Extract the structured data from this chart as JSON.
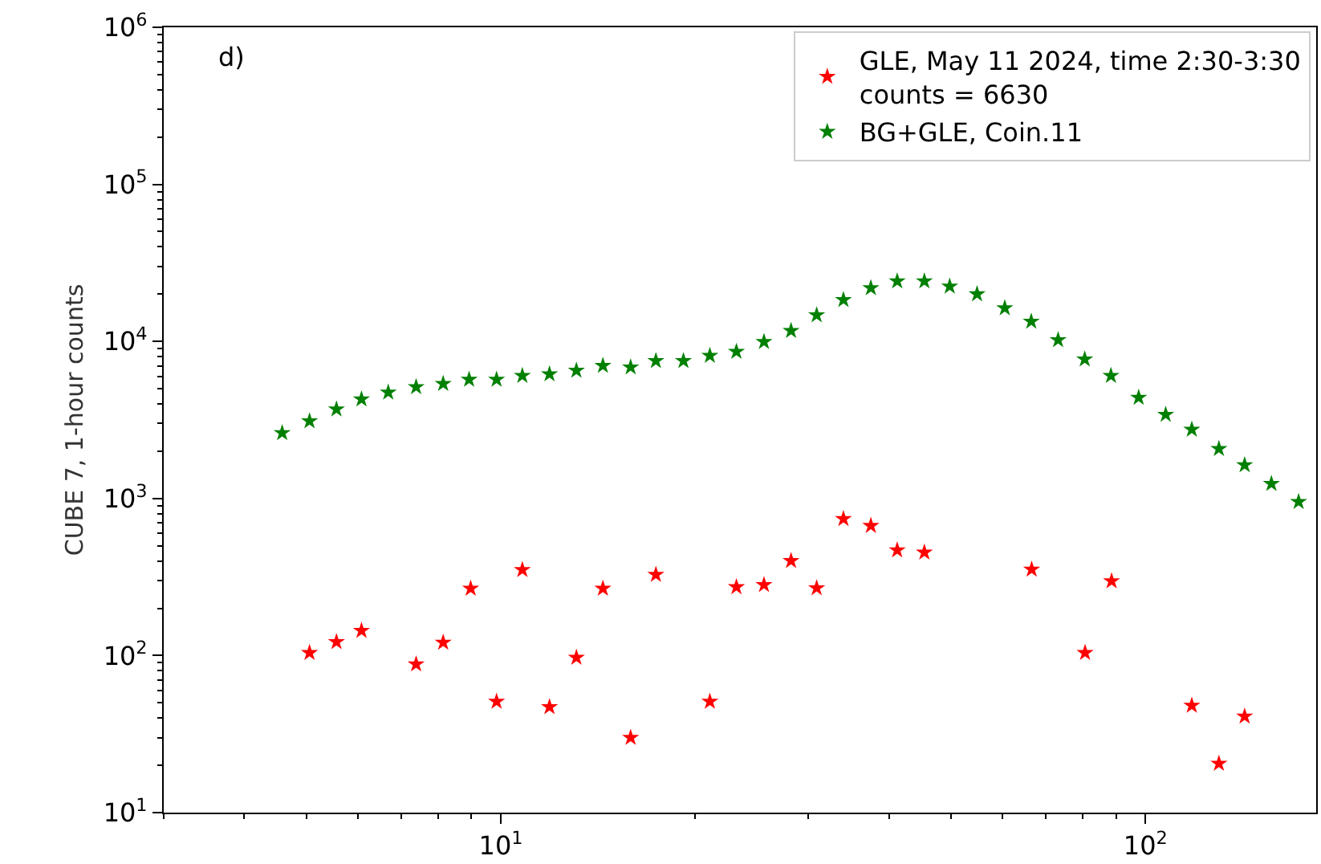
{
  "chart_data": {
    "type": "scatter",
    "ylabel": "CUBE 7, 1-hour counts",
    "annotations": [
      "d)"
    ],
    "log": "xy",
    "legend": "top right",
    "marker": "star",
    "xlim": [
      3,
      184
    ],
    "ylim": [
      10,
      1000000
    ],
    "xticks": [
      {
        "value": 10,
        "label": "10$^{1}$"
      },
      {
        "value": 100,
        "label": "10$^{2}$"
      }
    ],
    "yticks": [
      {
        "value": 10,
        "label": "10$^{1}$"
      },
      {
        "value": 100,
        "label": "10$^{2}$"
      },
      {
        "value": 1000,
        "label": "10$^{3}$"
      },
      {
        "value": 10000,
        "label": "10$^{4}$"
      },
      {
        "value": 100000,
        "label": "10$^{5}$"
      },
      {
        "value": 1000000,
        "label": "10$^{6}$"
      }
    ],
    "series": [
      {
        "name": "GLE, May 11 2024, time 2:30-3:30\ncounts = 6630",
        "color": "#ff0000",
        "x": [
          5.05,
          5.56,
          6.08,
          7.39,
          8.14,
          8.98,
          9.85,
          10.8,
          11.9,
          13.1,
          14.4,
          15.9,
          17.4,
          21.1,
          23.2,
          25.6,
          28.2,
          30.9,
          34.0,
          37.5,
          41.2,
          45.4,
          66.6,
          80.6,
          88.6,
          118,
          130,
          142.5
        ],
        "values": [
          104,
          122,
          144,
          88,
          121,
          267,
          51,
          351,
          47,
          97,
          267,
          30,
          327,
          51,
          273,
          282,
          401,
          269,
          741,
          670,
          468,
          454,
          353,
          104,
          298,
          48,
          20.5,
          41
        ]
      },
      {
        "name": "BG+GLE, Coin.11",
        "color": "#008000",
        "x": [
          4.58,
          5.05,
          5.56,
          6.08,
          6.69,
          7.39,
          8.14,
          8.93,
          9.85,
          10.8,
          11.9,
          13.1,
          14.4,
          15.9,
          17.4,
          19.2,
          21.1,
          23.2,
          25.6,
          28.2,
          30.9,
          34.0,
          37.5,
          41.2,
          45.4,
          49.7,
          54.8,
          60.5,
          66.5,
          73.2,
          80.5,
          88.4,
          97.6,
          107.5,
          118,
          130,
          142.5,
          156.8,
          172.8
        ],
        "values": [
          2610,
          3110,
          3700,
          4290,
          4740,
          5130,
          5380,
          5720,
          5720,
          6050,
          6190,
          6530,
          7010,
          6850,
          7510,
          7510,
          8120,
          8600,
          9950,
          11700,
          14700,
          18400,
          21900,
          24200,
          24200,
          22400,
          20000,
          16300,
          13400,
          10200,
          7690,
          6050,
          4390,
          3420,
          2750,
          2070,
          1630,
          1240,
          953
        ]
      }
    ]
  }
}
